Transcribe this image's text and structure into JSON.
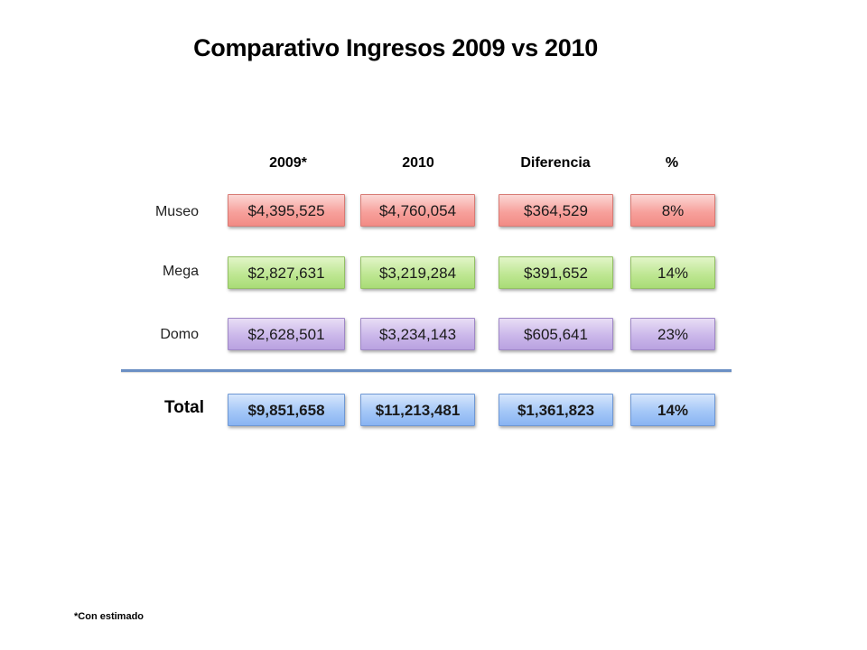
{
  "title": "Comparativo Ingresos 2009 vs 2010",
  "headers": [
    "2009*",
    "2010",
    "Diferencia",
    "%"
  ],
  "rows": [
    {
      "label": "Museo",
      "values": [
        "$4,395,525",
        "$4,760,054",
        "$364,529",
        "8%"
      ],
      "color": "#f28b85"
    },
    {
      "label": "Mega",
      "values": [
        "$2,827,631",
        "$3,219,284",
        "$391,652",
        "14%"
      ],
      "color": "#a9dc76"
    },
    {
      "label": "Domo",
      "values": [
        "$2,628,501",
        "$3,234,143",
        "$605,641",
        "23%"
      ],
      "color": "#b9a2e0"
    }
  ],
  "total": {
    "label": "Total",
    "values": [
      "$9,851,658",
      "$11,213,481",
      "$1,361,823",
      "14%"
    ],
    "color": "#89b4f2"
  },
  "footnote": "*Con estimado"
}
